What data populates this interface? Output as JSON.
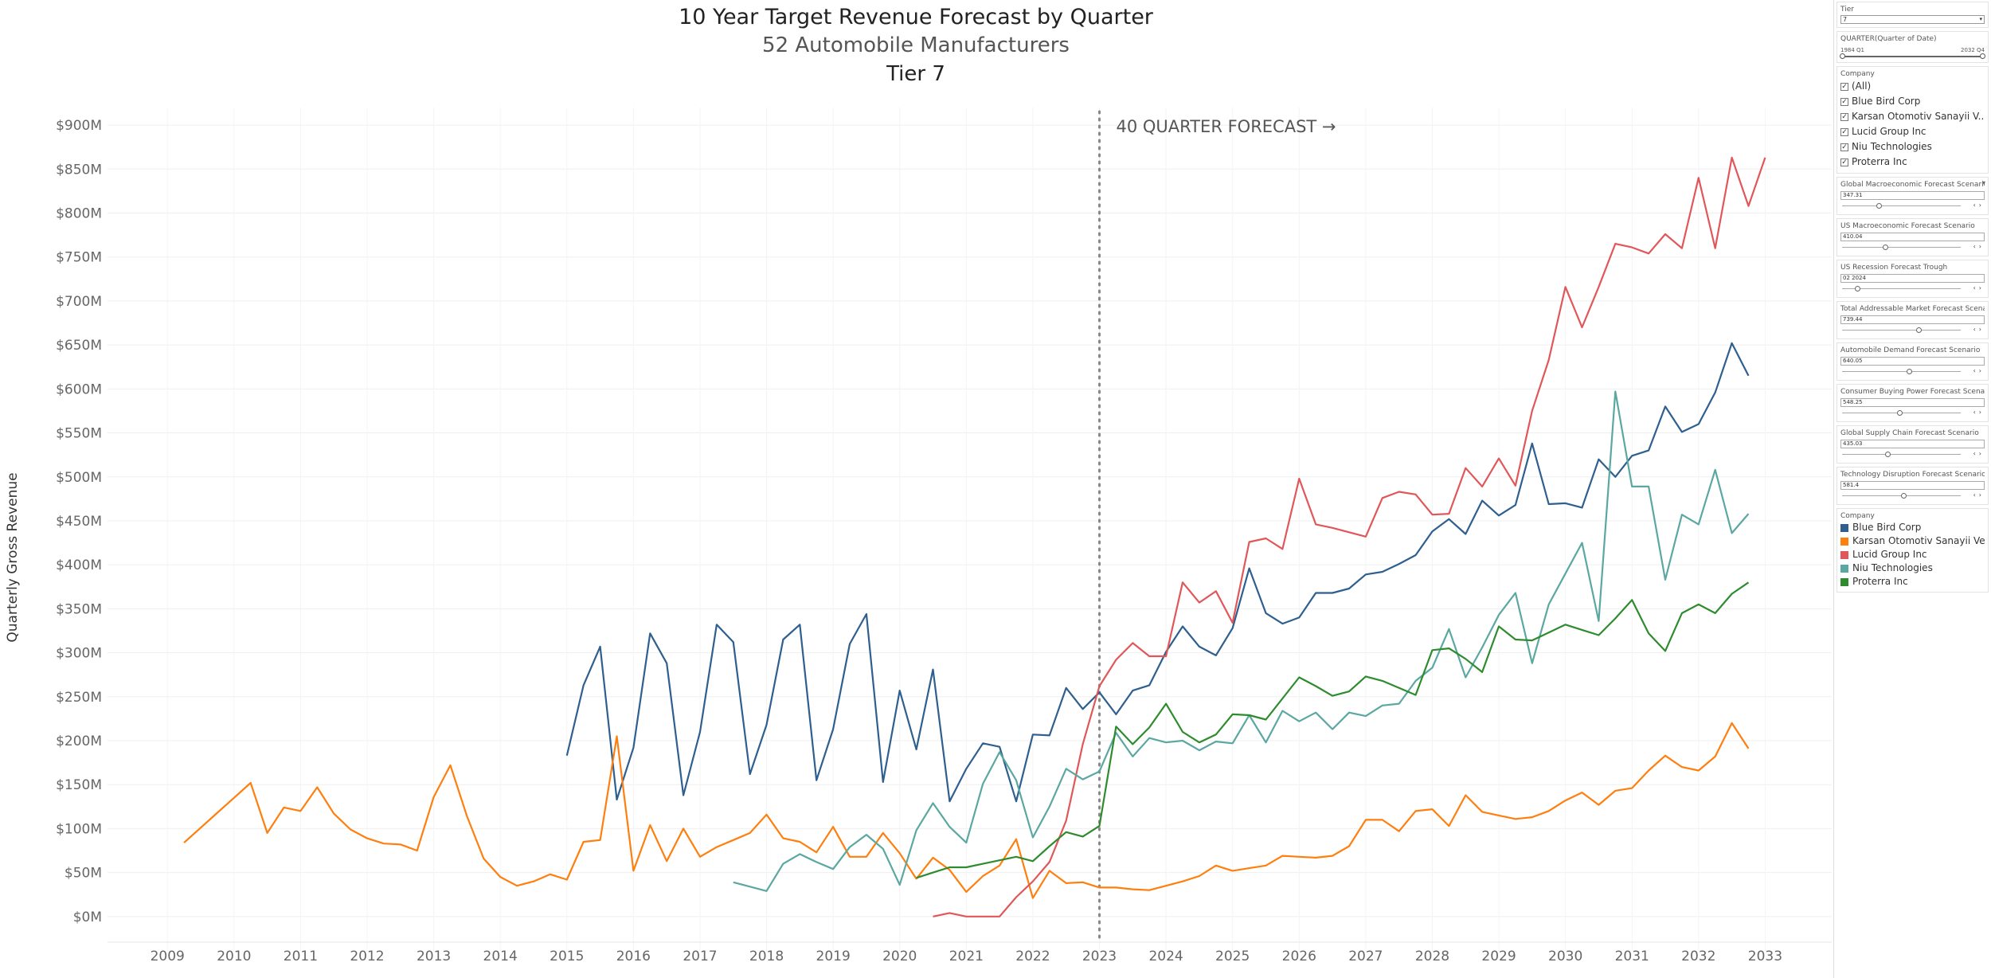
{
  "titles": {
    "line1": "10 Year Target Revenue Forecast by Quarter",
    "line2": "52 Automobile Manufacturers",
    "line3": "Tier 7"
  },
  "forecast_label": "40 QUARTER FORECAST →",
  "chart_data": {
    "type": "line",
    "title": "10 Year Target Revenue Forecast by Quarter",
    "subtitle": "52 Automobile Manufacturers",
    "ylabel": "Quarterly Gross Revenue",
    "xlabel": "",
    "ylim": [
      -40,
      920
    ],
    "xlim": [
      2008.1,
      2034.0
    ],
    "y_ticks": [
      0,
      50,
      100,
      150,
      200,
      250,
      300,
      350,
      400,
      450,
      500,
      550,
      600,
      650,
      700,
      750,
      800,
      850,
      900
    ],
    "y_tick_labels": [
      "$0M",
      "$50M",
      "$100M",
      "$150M",
      "$200M",
      "$250M",
      "$300M",
      "$350M",
      "$400M",
      "$450M",
      "$500M",
      "$550M",
      "$600M",
      "$650M",
      "$700M",
      "$750M",
      "$800M",
      "$850M",
      "$900M"
    ],
    "x_ticks": [
      2009,
      2010,
      2011,
      2012,
      2013,
      2014,
      2015,
      2016,
      2017,
      2018,
      2019,
      2020,
      2021,
      2022,
      2023,
      2024,
      2025,
      2026,
      2027,
      2028,
      2029,
      2030,
      2031,
      2032,
      2033
    ],
    "x_tick_labels": [
      "2009",
      "2010",
      "2011",
      "2012",
      "2013",
      "2014",
      "2015",
      "2016",
      "2017",
      "2018",
      "2019",
      "2020",
      "2021",
      "2022",
      "2023",
      "2024",
      "2025",
      "2026",
      "2027",
      "2028",
      "2029",
      "2030",
      "2031",
      "2032",
      "2033"
    ],
    "forecast_start": 2023.0,
    "grid": true,
    "series": [
      {
        "name": "Blue Bird Corp",
        "color": "#2e5f8f",
        "start": 2015.0,
        "values": [
          183,
          263,
          307,
          133,
          192,
          322,
          288,
          138,
          210,
          332,
          312,
          162,
          218,
          315,
          332,
          155,
          213,
          310,
          344,
          153,
          257,
          190,
          281,
          131,
          168,
          197,
          193,
          131,
          207,
          206,
          260,
          236,
          255,
          230,
          257,
          263,
          301,
          330,
          307,
          297,
          328,
          396,
          345,
          333,
          340,
          368,
          368,
          373,
          389,
          392,
          401,
          411,
          438,
          452,
          435,
          473,
          456,
          468,
          538,
          469,
          470,
          465,
          520,
          500,
          524,
          530,
          580,
          551,
          560,
          596,
          652,
          615
        ]
      },
      {
        "name": "Karsan Otomotiv Sanayii Ve...",
        "color": "#ff7f0e",
        "start": 2009.25,
        "values": [
          84,
          101,
          118,
          135,
          152,
          95,
          124,
          120,
          147,
          117,
          99,
          89,
          83,
          82,
          75,
          136,
          172,
          114,
          66,
          45,
          35,
          40,
          48,
          42,
          85,
          87,
          205,
          52,
          104,
          63,
          100,
          68,
          79,
          87,
          95,
          116,
          89,
          85,
          73,
          102,
          68,
          68,
          95,
          72,
          43,
          67,
          53,
          28,
          46,
          58,
          88,
          21,
          52,
          38,
          39,
          33,
          33,
          31,
          30,
          35,
          40,
          46,
          58,
          52,
          55,
          58,
          69,
          68,
          67,
          69,
          80,
          110,
          110,
          97,
          120,
          122,
          103,
          138,
          119,
          115,
          111,
          113,
          120,
          132,
          141,
          127,
          143,
          146,
          166,
          183,
          170,
          166,
          182,
          220,
          191
        ]
      },
      {
        "name": "Lucid Group Inc",
        "color": "#e15759",
        "start": 2020.5,
        "values": [
          0,
          4,
          0,
          0,
          0,
          22,
          40,
          62,
          109,
          196,
          262,
          292,
          311,
          296,
          296,
          380,
          357,
          370,
          334,
          426,
          430,
          418,
          498,
          446,
          442,
          437,
          432,
          476,
          483,
          480,
          457,
          458,
          510,
          489,
          521,
          490,
          575,
          633,
          716,
          670,
          716,
          765,
          761,
          754,
          776,
          760,
          840,
          760,
          863,
          808,
          863
        ]
      },
      {
        "name": "Niu Technologies",
        "color": "#5ba7a1",
        "start": 2017.5,
        "values": [
          39,
          34,
          29,
          60,
          71,
          62,
          54,
          79,
          93,
          77,
          36,
          98,
          129,
          102,
          84,
          151,
          187,
          155,
          90,
          125,
          168,
          156,
          165,
          209,
          182,
          203,
          198,
          200,
          189,
          199,
          197,
          229,
          198,
          234,
          222,
          232,
          213,
          232,
          228,
          240,
          242,
          268,
          283,
          327,
          272,
          306,
          343,
          368,
          288,
          355,
          390,
          425,
          336,
          597,
          489,
          489,
          383,
          457,
          446,
          508,
          436,
          458
        ]
      },
      {
        "name": "Proterra Inc",
        "color": "#2e8b2e",
        "start": 2020.25,
        "values": [
          44,
          50,
          56,
          56,
          60,
          64,
          68,
          63,
          80,
          96,
          91,
          103,
          216,
          196,
          215,
          242,
          210,
          198,
          207,
          230,
          229,
          224,
          248,
          272,
          262,
          251,
          256,
          273,
          268,
          260,
          252,
          303,
          305,
          293,
          278,
          330,
          315,
          314,
          323,
          332,
          326,
          320,
          339,
          360,
          322,
          302,
          345,
          355,
          345,
          367,
          380
        ]
      }
    ]
  },
  "panel": {
    "tier": {
      "title": "Tier",
      "value": "7"
    },
    "quarter": {
      "title": "QUARTER(Quarter of Date)",
      "min_label": "1984 Q1",
      "max_label": "2032 Q4",
      "low": 0.0,
      "high": 1.0
    },
    "company_filter": {
      "title": "Company",
      "items": [
        {
          "label": "(All)",
          "checked": true
        },
        {
          "label": "Blue Bird Corp",
          "checked": true
        },
        {
          "label": "Karsan Otomotiv Sanayii V...",
          "checked": true
        },
        {
          "label": "Lucid Group Inc",
          "checked": true
        },
        {
          "label": "Niu Technologies",
          "checked": true
        },
        {
          "label": "Proterra Inc",
          "checked": true
        }
      ]
    },
    "params": [
      {
        "title": "Global Macroeconomic Forecast Scenario",
        "value": "347.31",
        "level": 0.3
      },
      {
        "title": "US Macroeconomic Forecast Scenario",
        "value": "410.04",
        "level": 0.36
      },
      {
        "title": "US Recession Forecast Trough",
        "value": "02 2024",
        "level": 0.12
      },
      {
        "title": "Total Addressable Market Forecast Scenario",
        "value": "739.44",
        "level": 0.64
      },
      {
        "title": "Automobile Demand Forecast Scenario",
        "value": "640.05",
        "level": 0.56
      },
      {
        "title": "Consumer Buying Power Forecast Scenario",
        "value": "548.25",
        "level": 0.48
      },
      {
        "title": "Global Supply Chain Forecast Scenario",
        "value": "435.03",
        "level": 0.38
      },
      {
        "title": "Technology Disruption Forecast Scenario",
        "value": "581.4",
        "level": 0.51
      }
    ],
    "legend": {
      "title": "Company",
      "items": [
        {
          "label": "Blue Bird Corp",
          "color": "#2e5f8f"
        },
        {
          "label": "Karsan Otomotiv Sanayii Ve...",
          "color": "#ff7f0e"
        },
        {
          "label": "Lucid Group Inc",
          "color": "#e15759"
        },
        {
          "label": "Niu Technologies",
          "color": "#5ba7a1"
        },
        {
          "label": "Proterra Inc",
          "color": "#2e8b2e"
        }
      ]
    }
  }
}
